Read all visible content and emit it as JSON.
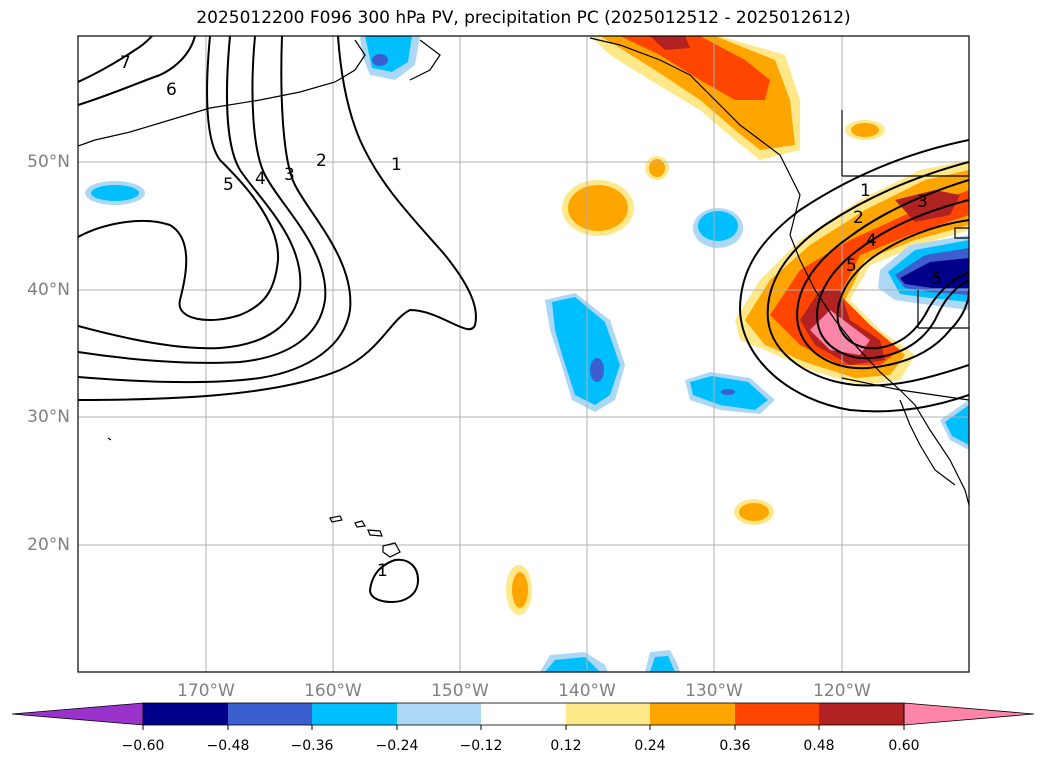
{
  "title": "2025012200 F096 300 hPa PV, precipitation PC (2025012512 - 2025012612)",
  "map": {
    "lat_labels": [
      "50°N",
      "40°N",
      "30°N",
      "20°N"
    ],
    "lon_labels": [
      "170°W",
      "160°W",
      "150°W",
      "140°W",
      "130°W",
      "120°W"
    ],
    "extent": {
      "lon_min": -180,
      "lon_max": -110,
      "lat_min": 10,
      "lat_max": 60
    },
    "grid": true,
    "pv_contour_labels": [
      "7",
      "6",
      "5",
      "4",
      "3",
      "2",
      "1",
      "1",
      "2",
      "3",
      "4",
      "5",
      "5",
      "1"
    ]
  },
  "colorbar": {
    "ticks": [
      "−0.60",
      "−0.48",
      "−0.36",
      "−0.24",
      "−0.12",
      "0.12",
      "0.24",
      "0.36",
      "0.48",
      "0.60"
    ],
    "colors": [
      "#9933cc",
      "#00008b",
      "#3b5fcf",
      "#00bfff",
      "#add8f5",
      "#ffffff",
      "#ffe88a",
      "#ffa500",
      "#ff4500",
      "#b22222",
      "#ff85a8"
    ],
    "extend": "both"
  }
}
